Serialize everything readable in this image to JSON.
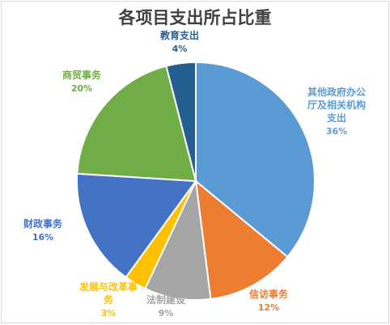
{
  "chart_data": {
    "type": "pie",
    "title": "各项目支出所占比重",
    "legend": "none (labels placed next to slices)",
    "slices": [
      {
        "label": "其他政府办公厅及相关机构支出",
        "label_lines": [
          "其他政府办公",
          "厅及相关机构",
          "支出"
        ],
        "value": 36,
        "display": "36%",
        "color": "#5b9bd5"
      },
      {
        "label": "信访事务",
        "label_lines": [
          "信访事务"
        ],
        "value": 12,
        "display": "12%",
        "color": "#ed7d31"
      },
      {
        "label": "法制建设",
        "label_lines": [
          "法制建设"
        ],
        "value": 9,
        "display": "9%",
        "color": "#a5a5a5"
      },
      {
        "label": "发展与改革事务",
        "label_lines": [
          "发展与改革事",
          "务"
        ],
        "value": 3,
        "display": "3%",
        "color": "#ffc000"
      },
      {
        "label": "财政事务",
        "label_lines": [
          "财政事务"
        ],
        "value": 16,
        "display": "16%",
        "color": "#4472c4"
      },
      {
        "label": "商贸事务",
        "label_lines": [
          "商贸事务"
        ],
        "value": 20,
        "display": "20%",
        "color": "#70ad47"
      },
      {
        "label": "教育支出",
        "label_lines": [
          "教育支出"
        ],
        "value": 4,
        "display": "4%",
        "color": "#255e91"
      }
    ]
  }
}
